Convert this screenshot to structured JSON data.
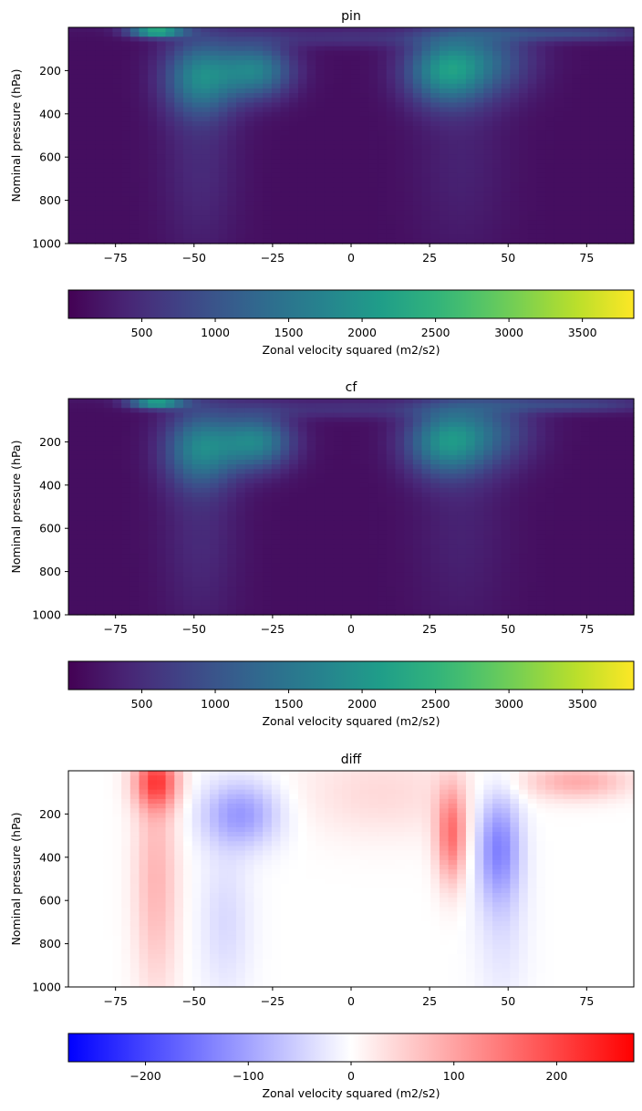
{
  "figure": {
    "panels": [
      {
        "title": "pin",
        "ylabel": "Nominal pressure (hPa)",
        "colorbar_label": "Zonal velocity squared (m2/s2)",
        "colormap": "viridis"
      },
      {
        "title": "cf",
        "ylabel": "Nominal pressure (hPa)",
        "colorbar_label": "Zonal velocity squared (m2/s2)",
        "colormap": "viridis"
      },
      {
        "title": "diff",
        "ylabel": "Nominal pressure (hPa)",
        "colorbar_label": "Zonal velocity squared (m2/s2)",
        "colormap": "bwr"
      }
    ]
  },
  "chart_data": [
    {
      "type": "heatmap",
      "title": "pin",
      "xlabel": "",
      "ylabel": "Nominal pressure (hPa)",
      "xlim": [
        -90,
        90
      ],
      "ylim": [
        1000,
        0
      ],
      "xticks": [
        -75,
        -50,
        -25,
        0,
        25,
        50,
        75
      ],
      "yticks": [
        200,
        400,
        600,
        800,
        1000
      ],
      "colorbar": {
        "label": "Zonal velocity squared (m2/s2)",
        "range": [
          0,
          3850
        ],
        "ticks": [
          500,
          1000,
          1500,
          2000,
          2500,
          3000,
          3500
        ],
        "colormap": "viridis"
      },
      "features": [
        {
          "lat": -62,
          "pressure": 20,
          "value": 2300
        },
        {
          "lat": -48,
          "pressure": 230,
          "value": 1500
        },
        {
          "lat": -30,
          "pressure": 200,
          "value": 1500
        },
        {
          "lat": 30,
          "pressure": 200,
          "value": 1700
        },
        {
          "lat": 45,
          "pressure": 150,
          "value": 800
        },
        {
          "lat": 70,
          "pressure": 30,
          "value": 700
        }
      ]
    },
    {
      "type": "heatmap",
      "title": "cf",
      "xlabel": "",
      "ylabel": "Nominal pressure (hPa)",
      "xlim": [
        -90,
        90
      ],
      "ylim": [
        1000,
        0
      ],
      "xticks": [
        -75,
        -50,
        -25,
        0,
        25,
        50,
        75
      ],
      "yticks": [
        200,
        400,
        600,
        800,
        1000
      ],
      "colorbar": {
        "label": "Zonal velocity squared (m2/s2)",
        "range": [
          0,
          3850
        ],
        "ticks": [
          500,
          1000,
          1500,
          2000,
          2500,
          3000,
          3500
        ],
        "colormap": "viridis"
      },
      "features": [
        {
          "lat": -62,
          "pressure": 20,
          "value": 2100
        },
        {
          "lat": -48,
          "pressure": 230,
          "value": 1450
        },
        {
          "lat": -30,
          "pressure": 200,
          "value": 1550
        },
        {
          "lat": 30,
          "pressure": 200,
          "value": 1600
        },
        {
          "lat": 45,
          "pressure": 150,
          "value": 750
        },
        {
          "lat": 70,
          "pressure": 30,
          "value": 650
        }
      ]
    },
    {
      "type": "heatmap",
      "title": "diff",
      "xlabel": "",
      "ylabel": "Nominal pressure (hPa)",
      "xlim": [
        -90,
        90
      ],
      "ylim": [
        1000,
        0
      ],
      "xticks": [
        -75,
        -50,
        -25,
        0,
        25,
        50,
        75
      ],
      "yticks": [
        200,
        400,
        600,
        800,
        1000
      ],
      "colorbar": {
        "label": "Zonal velocity squared (m2/s2)",
        "range": [
          -275,
          275
        ],
        "ticks": [
          -200,
          -100,
          0,
          100,
          200
        ],
        "colormap": "bwr"
      },
      "features": [
        {
          "lat": -62,
          "pressure": 50,
          "value": 180
        },
        {
          "lat": -62,
          "pressure": 500,
          "value": 80
        },
        {
          "lat": -35,
          "pressure": 200,
          "value": -110
        },
        {
          "lat": 32,
          "pressure": 300,
          "value": 150
        },
        {
          "lat": 47,
          "pressure": 350,
          "value": -130
        },
        {
          "lat": 72,
          "pressure": 50,
          "value": 90
        }
      ]
    }
  ]
}
